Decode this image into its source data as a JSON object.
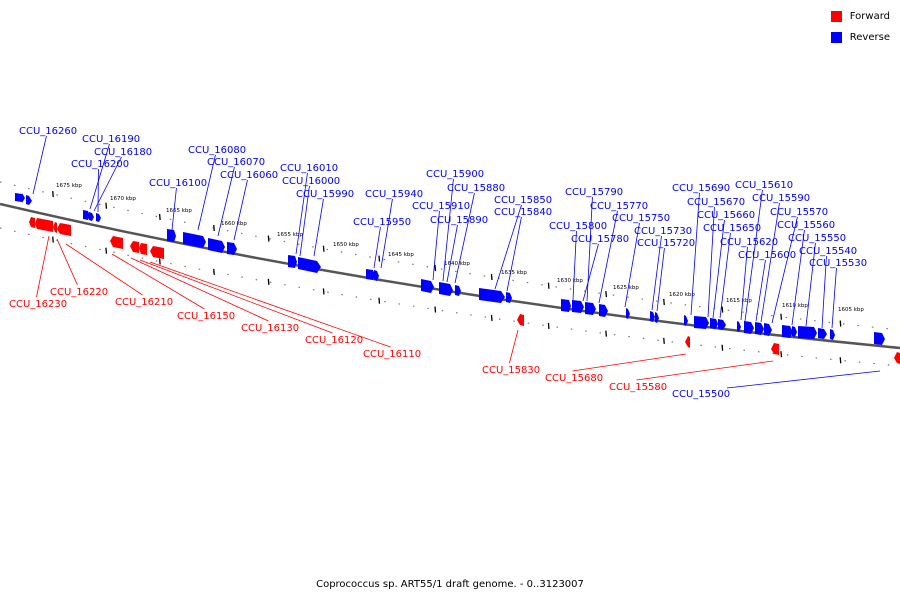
{
  "legend": {
    "forward_label": "Forward",
    "reverse_label": "Reverse",
    "forward_color": "#ff0000",
    "reverse_color": "#0000ff"
  },
  "caption": "Coprococcus sp. ART55/1 draft genome. - 0..3123007",
  "scale": [
    {
      "label": "1675 kbp",
      "kbp": 1675
    },
    {
      "label": "1670 kbp",
      "kbp": 1670
    },
    {
      "label": "1665 kbp",
      "kbp": 1665
    },
    {
      "label": "1660 kbp",
      "kbp": 1660
    },
    {
      "label": "1655 kbp",
      "kbp": 1655
    },
    {
      "label": "1650 kbp",
      "kbp": 1650
    },
    {
      "label": "1645 kbp",
      "kbp": 1645
    },
    {
      "label": "1640 kbp",
      "kbp": 1640
    },
    {
      "label": "1635 kbp",
      "kbp": 1635
    },
    {
      "label": "1630 kbp",
      "kbp": 1630
    },
    {
      "label": "1625 kbp",
      "kbp": 1625
    },
    {
      "label": "1620 kbp",
      "kbp": 1620
    },
    {
      "label": "1615 kbp",
      "kbp": 1615
    },
    {
      "label": "1610 kbp",
      "kbp": 1610
    },
    {
      "label": "1605 kbp",
      "kbp": 1605
    }
  ],
  "reverse_genes": [
    {
      "label": "CCU_16260",
      "kbp": 1678.0
    },
    {
      "label": "CCU_16190",
      "kbp": 1671.8
    },
    {
      "label": "CCU_16180",
      "kbp": 1671.2
    },
    {
      "label": "CCU_16200",
      "kbp": 1672.4
    },
    {
      "label": "CCU_16080",
      "kbp": 1662.8
    },
    {
      "label": "CCU_16070",
      "kbp": 1661.8
    },
    {
      "label": "CCU_16060",
      "kbp": 1660.9
    },
    {
      "label": "CCU_16100",
      "kbp": 1665.0
    },
    {
      "label": "CCU_16010",
      "kbp": 1655.6
    },
    {
      "label": "CCU_16000",
      "kbp": 1655.2
    },
    {
      "label": "CCU_15990",
      "kbp": 1654.0
    },
    {
      "label": "CCU_15940",
      "kbp": 1645.6
    },
    {
      "label": "CCU_15950",
      "kbp": 1646.2
    },
    {
      "label": "CCU_15900",
      "kbp": 1640.8
    },
    {
      "label": "CCU_15880",
      "kbp": 1640.0
    },
    {
      "label": "CCU_15910",
      "kbp": 1641.4
    },
    {
      "label": "CCU_15890",
      "kbp": 1639.4
    },
    {
      "label": "CCU_15850",
      "kbp": 1636.2
    },
    {
      "label": "CCU_15840",
      "kbp": 1635.0
    },
    {
      "label": "CCU_15790",
      "kbp": 1630.4
    },
    {
      "label": "CCU_15770",
      "kbp": 1629.6
    },
    {
      "label": "CCU_15800",
      "kbp": 1631.2
    },
    {
      "label": "CCU_15780",
      "kbp": 1628.9
    },
    {
      "label": "CCU_15750",
      "kbp": 1625.6
    },
    {
      "label": "CCU_15730",
      "kbp": 1624.3
    },
    {
      "label": "CCU_15720",
      "kbp": 1623.9
    },
    {
      "label": "CCU_15690",
      "kbp": 1620.4
    },
    {
      "label": "CCU_15670",
      "kbp": 1619.4
    },
    {
      "label": "CCU_15660",
      "kbp": 1618.5
    },
    {
      "label": "CCU_15650",
      "kbp": 1617.9
    },
    {
      "label": "CCU_15620",
      "kbp": 1616.2
    },
    {
      "label": "CCU_15600",
      "kbp": 1615.4
    },
    {
      "label": "CCU_15610",
      "kbp": 1614.1
    },
    {
      "label": "CCU_15590",
      "kbp": 1613.4
    },
    {
      "label": "CCU_15570",
      "kbp": 1612.0
    },
    {
      "label": "CCU_15560",
      "kbp": 1611.2
    },
    {
      "label": "CCU_15550",
      "kbp": 1610.4
    },
    {
      "label": "CCU_15540",
      "kbp": 1609.0
    },
    {
      "label": "CCU_15530",
      "kbp": 1608.4
    },
    {
      "label": "CCU_15500",
      "kbp": 1601.5
    }
  ],
  "forward_genes": [
    {
      "label": "CCU_16230",
      "kbp": 1677.3
    },
    {
      "label": "CCU_16220",
      "kbp": 1676.4
    },
    {
      "label": "CCU_16210",
      "kbp": 1674.6
    },
    {
      "label": "CCU_16150",
      "kbp": 1671.6
    },
    {
      "label": "CCU_16130",
      "kbp": 1670.9
    },
    {
      "label": "CCU_16120",
      "kbp": 1670.3
    },
    {
      "label": "CCU_16110",
      "kbp": 1669.5
    },
    {
      "label": "CCU_15830",
      "kbp": 1633.9
    },
    {
      "label": "CCU_15680",
      "kbp": 1620.6
    },
    {
      "label": "CCU_15580",
      "kbp": 1611.1
    }
  ]
}
